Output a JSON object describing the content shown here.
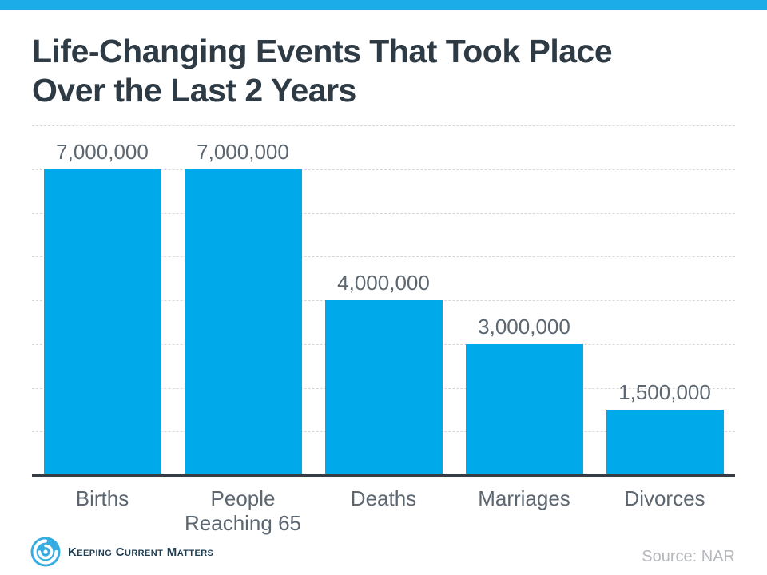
{
  "page": {
    "title_lines": [
      "Life-Changing Events That Took Place",
      "Over the Last 2 Years"
    ]
  },
  "chart_data": {
    "type": "bar",
    "title": "Life-Changing Events That Took Place Over the Last 2 Years",
    "categories": [
      "Births",
      "People Reaching 65",
      "Deaths",
      "Marriages",
      "Divorces"
    ],
    "values": [
      7000000,
      7000000,
      4000000,
      3000000,
      1500000
    ],
    "value_labels": [
      "7,000,000",
      "7,000,000",
      "4,000,000",
      "3,000,000",
      "1,500,000"
    ],
    "xlabel": "",
    "ylabel": "",
    "ylim": [
      0,
      8000000
    ],
    "gridline_interval": 1000000,
    "grid": true,
    "legend_position": "none",
    "bar_color": "#00A9E9"
  },
  "footer": {
    "brand": "Keeping Current Matters",
    "source": "Source: NAR"
  },
  "colors": {
    "accent_strip": "#1CACE8",
    "title_text": "#2E3A44",
    "label_gray": "#5D6771",
    "gridline": "#D8D8D8",
    "baseline": "#363C43",
    "source_gray": "#B5B8BC",
    "logo_navy": "#1F3E53",
    "logo_blue": "#35ACE2"
  }
}
